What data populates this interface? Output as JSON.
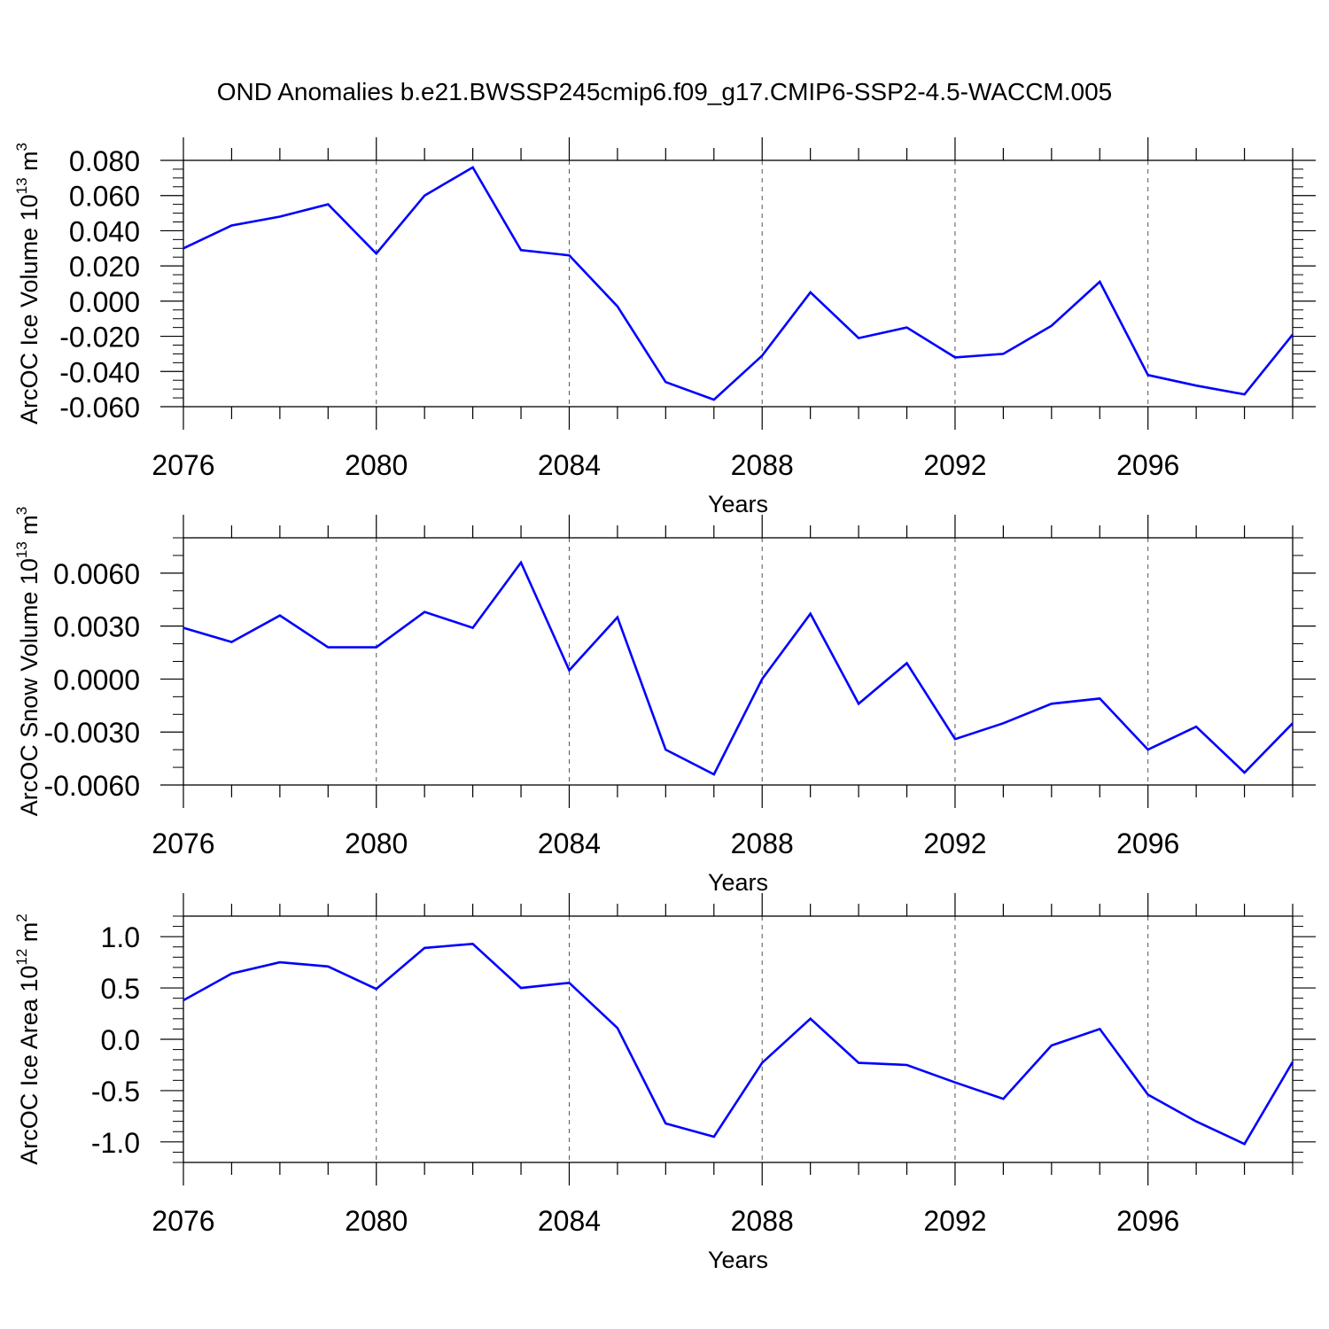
{
  "title": "OND Anomalies b.e21.BWSSP245cmip6.f09_g17.CMIP6-SSP2-4.5-WACCM.005",
  "style": {
    "line_color": "#0000ff",
    "axis_color": "#000000",
    "grid_color": "#555555",
    "background": "#ffffff"
  },
  "chart_data": [
    {
      "type": "line",
      "name": "ice-volume",
      "ylabel": "ArcOC Ice Volume 10",
      "ylabel_exp": "13",
      "ylabel_unit": " m",
      "ylabel_unit_exp": "3",
      "xlabel": "Years",
      "xlim": [
        2076,
        2099
      ],
      "ylim": [
        -0.06,
        0.08
      ],
      "yticks": [
        -0.06,
        -0.04,
        -0.02,
        0.0,
        0.02,
        0.04,
        0.06,
        0.08
      ],
      "ytick_labels": [
        "-0.060",
        "-0.040",
        "-0.020",
        "0.000",
        "0.020",
        "0.040",
        "0.060",
        "0.080"
      ],
      "yminor_step": 0.005,
      "xticks": [
        2076,
        2080,
        2084,
        2088,
        2092,
        2096
      ],
      "xtick_labels": [
        "2076",
        "2080",
        "2084",
        "2088",
        "2092",
        "2096"
      ],
      "grid": "dashed vertical at major x ticks",
      "x": [
        2076,
        2077,
        2078,
        2079,
        2080,
        2081,
        2082,
        2083,
        2084,
        2085,
        2086,
        2087,
        2088,
        2089,
        2090,
        2091,
        2092,
        2093,
        2094,
        2095,
        2096,
        2097,
        2098,
        2099
      ],
      "y": [
        0.03,
        0.043,
        0.048,
        0.055,
        0.027,
        0.06,
        0.076,
        0.029,
        0.026,
        -0.003,
        -0.046,
        -0.056,
        -0.031,
        0.005,
        -0.021,
        -0.015,
        -0.032,
        -0.03,
        -0.014,
        0.011,
        -0.042,
        -0.048,
        -0.053,
        -0.019
      ]
    },
    {
      "type": "line",
      "name": "snow-volume",
      "ylabel": "ArcOC Snow Volume 10",
      "ylabel_exp": "13",
      "ylabel_unit": " m",
      "ylabel_unit_exp": "3",
      "xlabel": "Years",
      "xlim": [
        2076,
        2099
      ],
      "ylim": [
        -0.006,
        0.008
      ],
      "yticks": [
        -0.006,
        -0.003,
        0.0,
        0.003,
        0.006
      ],
      "ytick_labels": [
        "-0.0060",
        "-0.0030",
        "0.0000",
        "0.0030",
        "0.0060"
      ],
      "yminor_step": 0.001,
      "xticks": [
        2076,
        2080,
        2084,
        2088,
        2092,
        2096
      ],
      "xtick_labels": [
        "2076",
        "2080",
        "2084",
        "2088",
        "2092",
        "2096"
      ],
      "grid": "dashed vertical at major x ticks",
      "x": [
        2076,
        2077,
        2078,
        2079,
        2080,
        2081,
        2082,
        2083,
        2084,
        2085,
        2086,
        2087,
        2088,
        2089,
        2090,
        2091,
        2092,
        2093,
        2094,
        2095,
        2096,
        2097,
        2098,
        2099
      ],
      "y": [
        0.0029,
        0.0021,
        0.0036,
        0.0018,
        0.0018,
        0.0038,
        0.0029,
        0.0066,
        0.0005,
        0.0035,
        -0.004,
        -0.0054,
        0.0,
        0.0037,
        -0.0014,
        0.0009,
        -0.0034,
        -0.0025,
        -0.0014,
        -0.0011,
        -0.004,
        -0.0027,
        -0.0053,
        -0.0025
      ]
    },
    {
      "type": "line",
      "name": "ice-area",
      "ylabel": "ArcOC Ice Area 10",
      "ylabel_exp": "12",
      "ylabel_unit": " m",
      "ylabel_unit_exp": "2",
      "xlabel": "Years",
      "xlim": [
        2076,
        2099
      ],
      "ylim": [
        -1.2,
        1.2
      ],
      "yticks": [
        -1.0,
        -0.5,
        0.0,
        0.5,
        1.0
      ],
      "ytick_labels": [
        "-1.0",
        "-0.5",
        "0.0",
        "0.5",
        "1.0"
      ],
      "yminor_step": 0.1,
      "xticks": [
        2076,
        2080,
        2084,
        2088,
        2092,
        2096
      ],
      "xtick_labels": [
        "2076",
        "2080",
        "2084",
        "2088",
        "2092",
        "2096"
      ],
      "grid": "dashed vertical at major x ticks",
      "x": [
        2076,
        2077,
        2078,
        2079,
        2080,
        2081,
        2082,
        2083,
        2084,
        2085,
        2086,
        2087,
        2088,
        2089,
        2090,
        2091,
        2092,
        2093,
        2094,
        2095,
        2096,
        2097,
        2098,
        2099
      ],
      "y": [
        0.38,
        0.64,
        0.75,
        0.71,
        0.49,
        0.89,
        0.93,
        0.5,
        0.55,
        0.11,
        -0.82,
        -0.95,
        -0.23,
        0.2,
        -0.23,
        -0.25,
        -0.42,
        -0.58,
        -0.06,
        0.1,
        -0.54,
        -0.8,
        -1.02,
        -0.22
      ]
    }
  ]
}
